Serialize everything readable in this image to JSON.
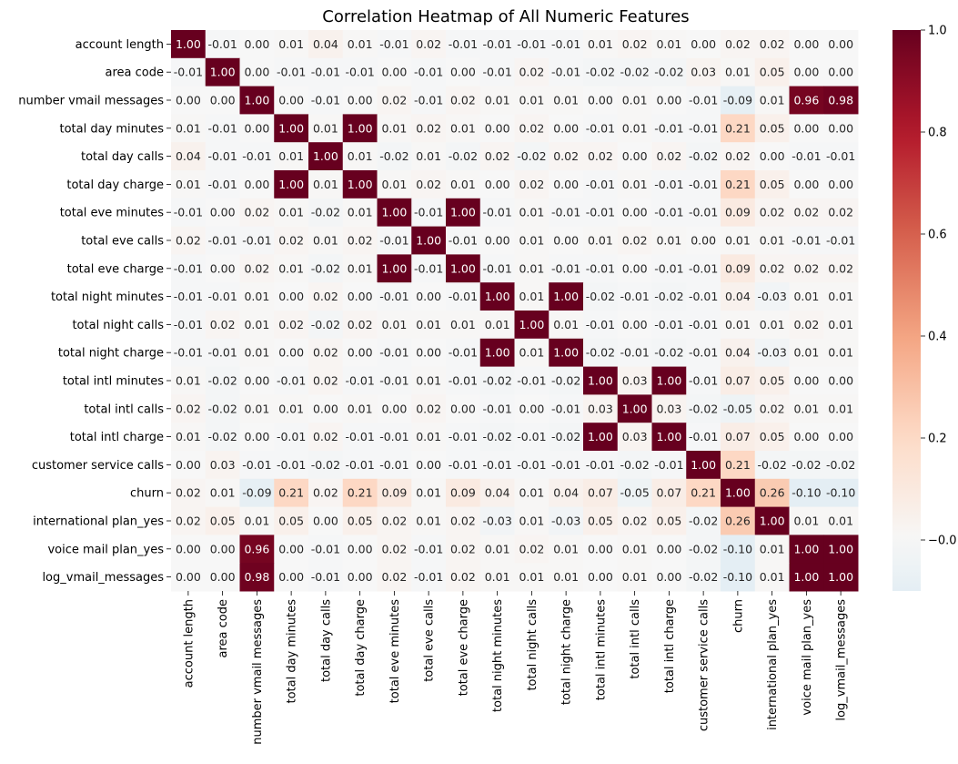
{
  "chart_data": {
    "type": "heatmap",
    "title": "Correlation Heatmap of All Numeric Features",
    "xlabel": "",
    "ylabel": "",
    "labels": [
      "account length",
      "area code",
      "number vmail messages",
      "total day minutes",
      "total day calls",
      "total day charge",
      "total eve minutes",
      "total eve calls",
      "total eve charge",
      "total night minutes",
      "total night calls",
      "total night charge",
      "total intl minutes",
      "total intl calls",
      "total intl charge",
      "customer service calls",
      "churn",
      "international plan_yes",
      "voice mail plan_yes",
      "log_vmail_messages"
    ],
    "matrix": [
      [
        1.0,
        -0.01,
        -0.0,
        0.01,
        0.04,
        0.01,
        -0.01,
        0.02,
        -0.01,
        -0.01,
        -0.01,
        -0.01,
        0.01,
        0.02,
        0.01,
        -0.0,
        0.02,
        0.02,
        0.0,
        0.0
      ],
      [
        -0.01,
        1.0,
        -0.0,
        -0.01,
        -0.01,
        -0.01,
        0.0,
        -0.01,
        0.0,
        -0.01,
        0.02,
        -0.01,
        -0.02,
        -0.02,
        -0.02,
        0.03,
        0.01,
        0.05,
        -0.0,
        -0.0
      ],
      [
        -0.0,
        -0.0,
        1.0,
        0.0,
        -0.01,
        0.0,
        0.02,
        -0.01,
        0.02,
        0.01,
        0.01,
        0.01,
        0.0,
        0.01,
        0.0,
        -0.01,
        -0.09,
        0.01,
        0.96,
        0.98
      ],
      [
        0.01,
        -0.01,
        0.0,
        1.0,
        0.01,
        1.0,
        0.01,
        0.02,
        0.01,
        0.0,
        0.02,
        0.0,
        -0.01,
        0.01,
        -0.01,
        -0.01,
        0.21,
        0.05,
        -0.0,
        -0.0
      ],
      [
        0.04,
        -0.01,
        -0.01,
        0.01,
        1.0,
        0.01,
        -0.02,
        0.01,
        -0.02,
        0.02,
        -0.02,
        0.02,
        0.02,
        0.0,
        0.02,
        -0.02,
        0.02,
        0.0,
        -0.01,
        -0.01
      ],
      [
        0.01,
        -0.01,
        0.0,
        1.0,
        0.01,
        1.0,
        0.01,
        0.02,
        0.01,
        0.0,
        0.02,
        0.0,
        -0.01,
        0.01,
        -0.01,
        -0.01,
        0.21,
        0.05,
        -0.0,
        -0.0
      ],
      [
        -0.01,
        0.0,
        0.02,
        0.01,
        -0.02,
        0.01,
        1.0,
        -0.01,
        1.0,
        -0.01,
        0.01,
        -0.01,
        -0.01,
        0.0,
        -0.01,
        -0.01,
        0.09,
        0.02,
        0.02,
        0.02
      ],
      [
        0.02,
        -0.01,
        -0.01,
        0.02,
        0.01,
        0.02,
        -0.01,
        1.0,
        -0.01,
        -0.0,
        0.01,
        -0.0,
        0.01,
        0.02,
        0.01,
        0.0,
        0.01,
        0.01,
        -0.01,
        -0.01
      ],
      [
        -0.01,
        0.0,
        0.02,
        0.01,
        -0.02,
        0.01,
        1.0,
        -0.01,
        1.0,
        -0.01,
        0.01,
        -0.01,
        -0.01,
        0.0,
        -0.01,
        -0.01,
        0.09,
        0.02,
        0.02,
        0.02
      ],
      [
        -0.01,
        -0.01,
        0.01,
        0.0,
        0.02,
        0.0,
        -0.01,
        -0.0,
        -0.01,
        1.0,
        0.01,
        1.0,
        -0.02,
        -0.01,
        -0.02,
        -0.01,
        0.04,
        -0.03,
        0.01,
        0.01
      ],
      [
        -0.01,
        0.02,
        0.01,
        0.02,
        -0.02,
        0.02,
        0.01,
        0.01,
        0.01,
        0.01,
        1.0,
        0.01,
        -0.01,
        0.0,
        -0.01,
        -0.01,
        0.01,
        0.01,
        0.02,
        0.01
      ],
      [
        -0.01,
        -0.01,
        0.01,
        0.0,
        0.02,
        0.0,
        -0.01,
        -0.0,
        -0.01,
        1.0,
        0.01,
        1.0,
        -0.02,
        -0.01,
        -0.02,
        -0.01,
        0.04,
        -0.03,
        0.01,
        0.01
      ],
      [
        0.01,
        -0.02,
        0.0,
        -0.01,
        0.02,
        -0.01,
        -0.01,
        0.01,
        -0.01,
        -0.02,
        -0.01,
        -0.02,
        1.0,
        0.03,
        1.0,
        -0.01,
        0.07,
        0.05,
        -0.0,
        0.0
      ],
      [
        0.02,
        -0.02,
        0.01,
        0.01,
        0.0,
        0.01,
        0.0,
        0.02,
        0.0,
        -0.01,
        0.0,
        -0.01,
        0.03,
        1.0,
        0.03,
        -0.02,
        -0.05,
        0.02,
        0.01,
        0.01
      ],
      [
        0.01,
        -0.02,
        0.0,
        -0.01,
        0.02,
        -0.01,
        -0.01,
        0.01,
        -0.01,
        -0.02,
        -0.01,
        -0.02,
        1.0,
        0.03,
        1.0,
        -0.01,
        0.07,
        0.05,
        -0.0,
        0.0
      ],
      [
        -0.0,
        0.03,
        -0.01,
        -0.01,
        -0.02,
        -0.01,
        -0.01,
        0.0,
        -0.01,
        -0.01,
        -0.01,
        -0.01,
        -0.01,
        -0.02,
        -0.01,
        1.0,
        0.21,
        -0.02,
        -0.02,
        -0.02
      ],
      [
        0.02,
        0.01,
        -0.09,
        0.21,
        0.02,
        0.21,
        0.09,
        0.01,
        0.09,
        0.04,
        0.01,
        0.04,
        0.07,
        -0.05,
        0.07,
        0.21,
        1.0,
        0.26,
        -0.1,
        -0.1
      ],
      [
        0.02,
        0.05,
        0.01,
        0.05,
        0.0,
        0.05,
        0.02,
        0.01,
        0.02,
        -0.03,
        0.01,
        -0.03,
        0.05,
        0.02,
        0.05,
        -0.02,
        0.26,
        1.0,
        0.01,
        0.01
      ],
      [
        0.0,
        -0.0,
        0.96,
        -0.0,
        -0.01,
        -0.0,
        0.02,
        -0.01,
        0.02,
        0.01,
        0.02,
        0.01,
        -0.0,
        0.01,
        -0.0,
        -0.02,
        -0.1,
        0.01,
        1.0,
        1.0
      ],
      [
        0.0,
        -0.0,
        0.98,
        -0.0,
        -0.01,
        -0.0,
        0.02,
        -0.01,
        0.02,
        0.01,
        0.01,
        0.01,
        0.0,
        0.01,
        0.0,
        -0.02,
        -0.1,
        0.01,
        1.0,
        1.0
      ]
    ],
    "vmin": -0.1,
    "vmax": 1.0,
    "colormap": "RdBu_r",
    "colorbar_ticks": [
      -0.0,
      0.2,
      0.4,
      0.6,
      0.8,
      1.0
    ],
    "colorbar_tick_labels": [
      "−0.0",
      "0.2",
      "0.4",
      "0.6",
      "0.8",
      "1.0"
    ],
    "annotations_format": "0.00",
    "grid": false,
    "legend": "colorbar-right"
  }
}
